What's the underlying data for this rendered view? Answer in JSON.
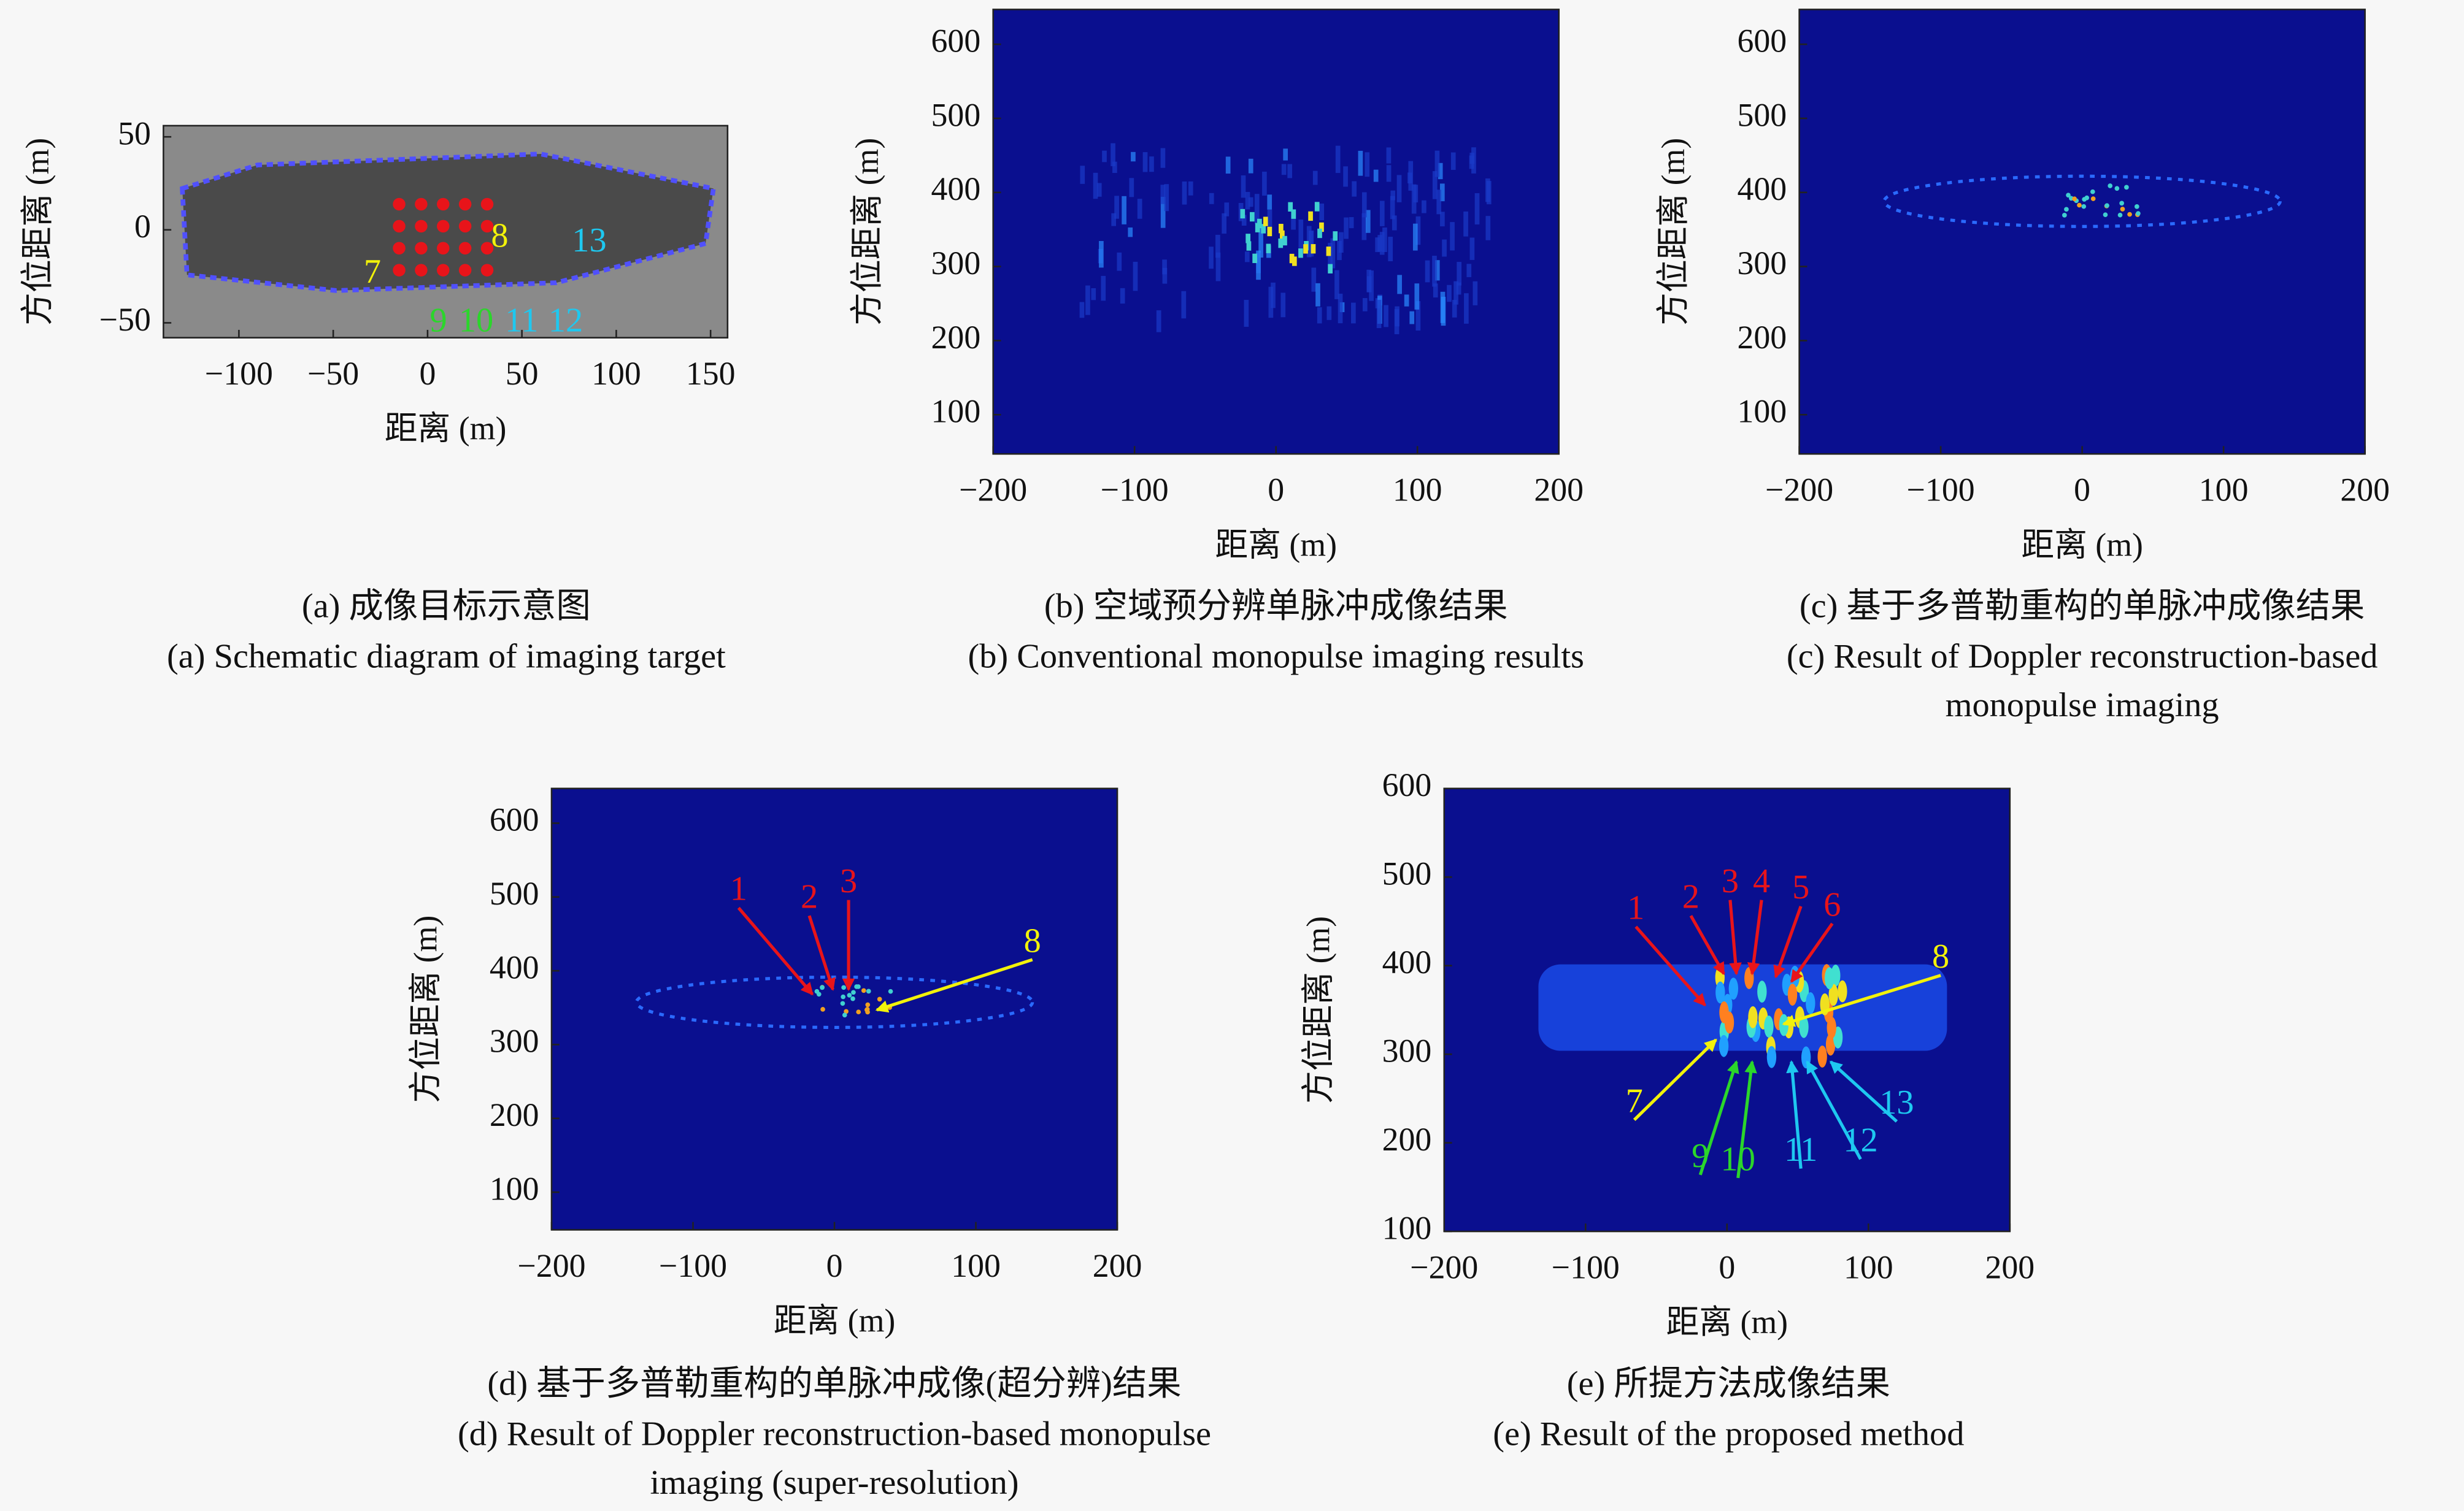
{
  "chart_data": [
    {
      "type": "image",
      "xlabel": "距离 (m)",
      "ylabel": "方位距离 (m)",
      "xlim": [
        -140,
        159
      ],
      "ylim": [
        -58,
        56
      ],
      "xticks": [
        {
          "value": -100,
          "label": "−100"
        },
        {
          "value": -50,
          "label": "−50"
        },
        0,
        50,
        100,
        150
      ],
      "yticks": [
        {
          "value": -50,
          "label": "−50"
        },
        0,
        50
      ],
      "annotations": [
        {
          "text": "7",
          "color": "#f2f20a"
        },
        {
          "text": "8",
          "color": "#f2f20a"
        },
        {
          "text": "13",
          "color": "#1ec8f0"
        },
        {
          "text": "9",
          "color": "#2bd62b"
        },
        {
          "text": "10",
          "color": "#2bd62b"
        },
        {
          "text": "11",
          "color": "#1ec8f0"
        },
        {
          "text": "12",
          "color": "#1ec8f0"
        }
      ],
      "caption_zh": "(a) 成像目标示意图",
      "caption_en": [
        "(a) Schematic diagram of imaging target"
      ]
    },
    {
      "type": "image",
      "xlabel": "距离 (m)",
      "ylabel": "方位距离 (m)",
      "xlim": [
        -200,
        200
      ],
      "ylim": [
        47,
        647
      ],
      "xticks": [
        {
          "value": -200,
          "label": "−200"
        },
        {
          "value": -100,
          "label": "−100"
        },
        0,
        100,
        200
      ],
      "yticks": [
        100,
        200,
        300,
        400,
        500,
        600
      ],
      "annotations": [],
      "caption_zh": "(b) 空域预分辨单脉冲成像结果",
      "caption_en": [
        "(b) Conventional monopulse imaging results"
      ]
    },
    {
      "type": "image",
      "xlabel": "距离 (m)",
      "ylabel": "方位距离 (m)",
      "xlim": [
        -200,
        200
      ],
      "ylim": [
        47,
        647
      ],
      "xticks": [
        {
          "value": -200,
          "label": "−200"
        },
        {
          "value": -100,
          "label": "−100"
        },
        0,
        100,
        200
      ],
      "yticks": [
        100,
        200,
        300,
        400,
        500,
        600
      ],
      "annotations": [],
      "caption_zh": "(c) 基于多普勒重构的单脉冲成像结果",
      "caption_en": [
        "(c) Result of Doppler reconstruction-based",
        "monopulse imaging"
      ]
    },
    {
      "type": "image",
      "xlabel": "距离 (m)",
      "ylabel": "方位距离 (m)",
      "xlim": [
        -200,
        200
      ],
      "ylim": [
        49,
        647
      ],
      "xticks": [
        {
          "value": -200,
          "label": "−200"
        },
        {
          "value": -100,
          "label": "−100"
        },
        0,
        100,
        200
      ],
      "yticks": [
        100,
        200,
        300,
        400,
        500,
        600
      ],
      "annotations": [
        {
          "text": "1",
          "color": "#e8141a"
        },
        {
          "text": "2",
          "color": "#e8141a"
        },
        {
          "text": "3",
          "color": "#e8141a"
        },
        {
          "text": "8",
          "color": "#f2f20a"
        }
      ],
      "caption_zh": "(d) 基于多普勒重构的单脉冲成像(超分辨)结果",
      "caption_en": [
        "(d) Result of Doppler reconstruction-based monopulse",
        "imaging (super-resolution)"
      ]
    },
    {
      "type": "image",
      "xlabel": "距离 (m)",
      "ylabel": "方位距离 (m)",
      "xlim": [
        -200,
        200
      ],
      "ylim": [
        100,
        600
      ],
      "xticks": [
        {
          "value": -200,
          "label": "−200"
        },
        {
          "value": -100,
          "label": "−100"
        },
        0,
        100,
        200
      ],
      "yticks": [
        100,
        200,
        300,
        400,
        500,
        600
      ],
      "annotations": [
        {
          "text": "1",
          "color": "#e8141a"
        },
        {
          "text": "2",
          "color": "#e8141a"
        },
        {
          "text": "3",
          "color": "#e8141a"
        },
        {
          "text": "4",
          "color": "#e8141a"
        },
        {
          "text": "5",
          "color": "#e8141a"
        },
        {
          "text": "6",
          "color": "#e8141a"
        },
        {
          "text": "8",
          "color": "#f2f20a"
        },
        {
          "text": "7",
          "color": "#f2f20a"
        },
        {
          "text": "9",
          "color": "#2bd62b"
        },
        {
          "text": "10",
          "color": "#2bd62b"
        },
        {
          "text": "11",
          "color": "#1ec8f0"
        },
        {
          "text": "12",
          "color": "#1ec8f0"
        },
        {
          "text": "13",
          "color": "#1ec8f0"
        }
      ],
      "caption_zh": "(e) 所提方法成像结果",
      "caption_en": [
        "(e) Result of the proposed method"
      ]
    }
  ]
}
